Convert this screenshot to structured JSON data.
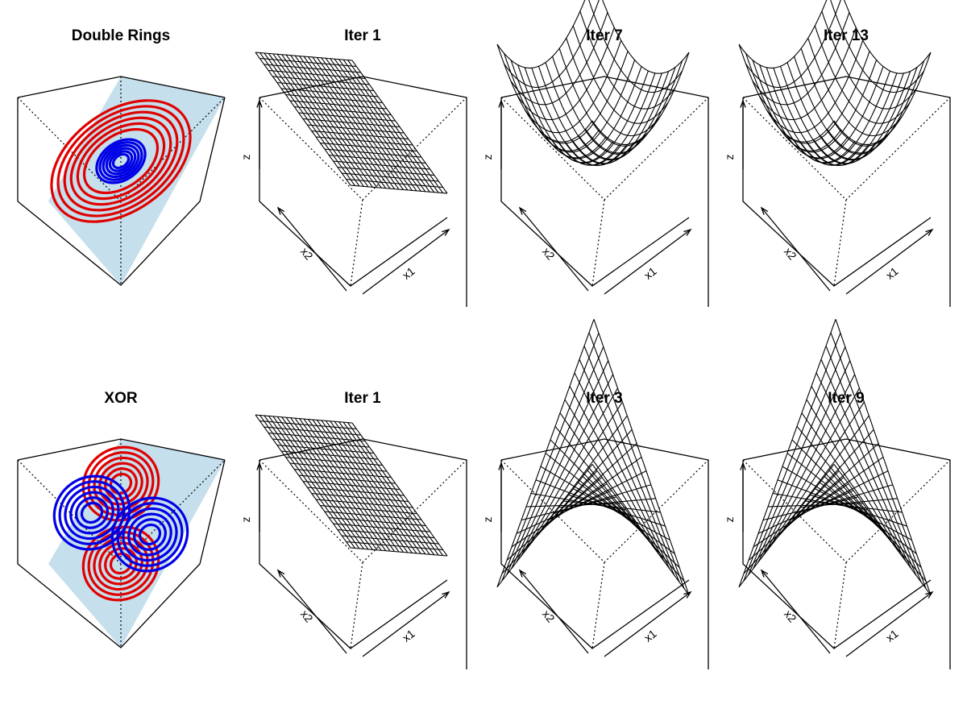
{
  "chart_data": [
    {
      "type": "surface",
      "panel": "data",
      "title": "Double Rings",
      "dataset": "double-rings",
      "plane_color": "#c5dfec",
      "series": [
        {
          "color": "#e00000",
          "levels": 6,
          "center": [
            0,
            0
          ]
        },
        {
          "color": "#0000e6",
          "levels": 6,
          "center": [
            0,
            0
          ]
        }
      ]
    },
    {
      "type": "surface",
      "panel": "fit",
      "title": "Iter  1",
      "surface": "plane",
      "xlabel": "x1",
      "ylabel": "x2",
      "zlabel": "z",
      "mesh_lines": 22
    },
    {
      "type": "surface",
      "panel": "fit",
      "title": "Iter  7",
      "surface": "bowl",
      "xlabel": "x1",
      "ylabel": "x2",
      "zlabel": "z",
      "mesh_lines": 14
    },
    {
      "type": "surface",
      "panel": "fit",
      "title": "Iter  13",
      "surface": "bowl",
      "xlabel": "x1",
      "ylabel": "x2",
      "zlabel": "z",
      "mesh_lines": 14
    },
    {
      "type": "surface",
      "panel": "data",
      "title": "XOR",
      "dataset": "xor",
      "plane_color": "#c5dfec",
      "series": [
        {
          "color": "#e00000",
          "levels": 6,
          "centers": [
            [
              0,
              0.45
            ],
            [
              0,
              -0.45
            ]
          ]
        },
        {
          "color": "#0000e6",
          "levels": 6,
          "centers": [
            [
              -0.45,
              0
            ],
            [
              0.45,
              0
            ]
          ]
        }
      ]
    },
    {
      "type": "surface",
      "panel": "fit",
      "title": "Iter  1",
      "surface": "plane",
      "xlabel": "x1",
      "ylabel": "x2",
      "zlabel": "z",
      "mesh_lines": 22
    },
    {
      "type": "surface",
      "panel": "fit",
      "title": "Iter  3",
      "surface": "saddle",
      "xlabel": "x1",
      "ylabel": "x2",
      "zlabel": "z",
      "mesh_lines": 20
    },
    {
      "type": "surface",
      "panel": "fit",
      "title": "Iter  9",
      "surface": "saddle",
      "xlabel": "x1",
      "ylabel": "x2",
      "zlabel": "z",
      "mesh_lines": 20
    }
  ]
}
